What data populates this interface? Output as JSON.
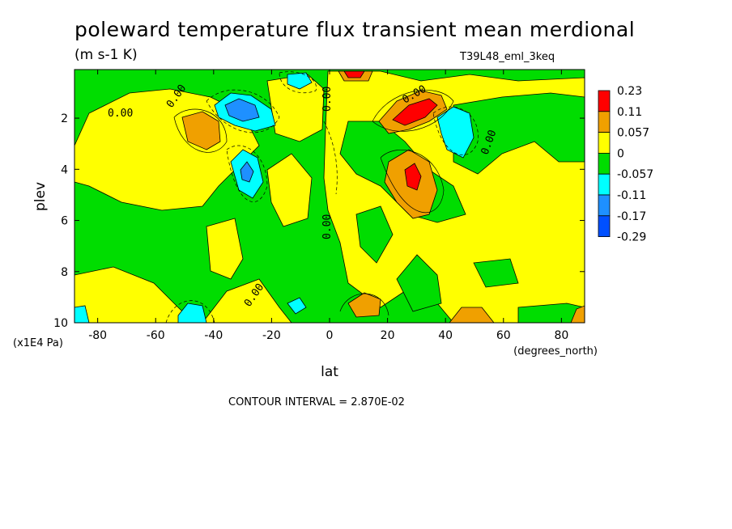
{
  "chart_data": {
    "type": "heatmap",
    "title": "poleward temperature flux transient mean merdional",
    "units": "(m s-1 K)",
    "dataset": "T39L48_eml_3keq",
    "xlabel": "lat",
    "xunit": "(degrees_north)",
    "ylabel": "plev",
    "yunit": "(x1E4 Pa)",
    "contour_interval_text": "CONTOUR INTERVAL = 2.870E-02",
    "xlim": [
      -88,
      88
    ],
    "ylim": [
      10,
      0.1
    ],
    "x_ticks": [
      -80,
      -60,
      -40,
      -20,
      0,
      20,
      40,
      60,
      80
    ],
    "y_ticks": [
      2,
      4,
      6,
      8,
      10
    ],
    "contour_label": "0.00",
    "colorbar": {
      "levels": [
        "0.23",
        "0.11",
        "0.057",
        "0",
        "-0.057",
        "-0.11",
        "-0.17",
        "-0.29"
      ],
      "colors": [
        "#ff0000",
        "#f0a000",
        "#ffff00",
        "#00dd00",
        "#00ffff",
        "#1e90ff",
        "#0050ff"
      ]
    },
    "features": [
      {
        "lat": 30,
        "plev": 4.2,
        "value": 0.09
      },
      {
        "lat": 30,
        "plev": 1.7,
        "value": 0.13
      },
      {
        "lat": 8,
        "plev": 0.3,
        "value": 0.12
      },
      {
        "lat": -42,
        "plev": 2.5,
        "value": 0.06
      },
      {
        "lat": -28,
        "plev": 1.7,
        "value": -0.17
      },
      {
        "lat": -30,
        "plev": 4.3,
        "value": -0.13
      },
      {
        "lat": 43,
        "plev": 2.4,
        "value": -0.12
      },
      {
        "lat": -5,
        "plev": 0.5,
        "value": -0.11
      },
      {
        "lat": -50,
        "plev": 9.5,
        "value": -0.1
      },
      {
        "lat": -86,
        "plev": 9.6,
        "value": -0.1
      },
      {
        "lat": 12,
        "plev": 9.2,
        "value": 0.06
      },
      {
        "lat": 46,
        "plev": 9.7,
        "value": 0.06
      },
      {
        "lat": 85,
        "plev": 9.8,
        "value": 0.06
      }
    ]
  }
}
